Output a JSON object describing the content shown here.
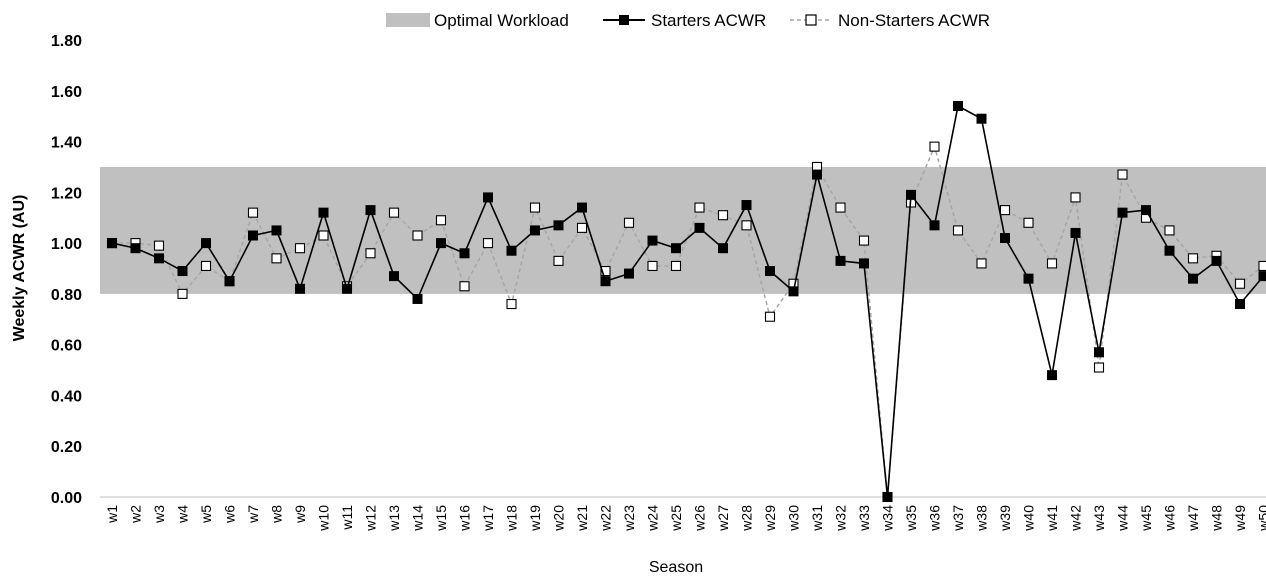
{
  "chart_data": {
    "type": "line",
    "title": "",
    "xlabel": "Season",
    "ylabel": "Weekly ACWR (AU)",
    "ylim": [
      0,
      1.8
    ],
    "y_ticks": [
      "0.00",
      "0.20",
      "0.40",
      "0.60",
      "0.80",
      "1.00",
      "1.20",
      "1.40",
      "1.60",
      "1.80"
    ],
    "y_tick_values": [
      0,
      0.2,
      0.4,
      0.6,
      0.8,
      1.0,
      1.2,
      1.4,
      1.6,
      1.8
    ],
    "grid": false,
    "legend_position": "top",
    "categories": [
      "w1",
      "w2",
      "w3",
      "w4",
      "w5",
      "w6",
      "w7",
      "w8",
      "w9",
      "w10",
      "w11",
      "w12",
      "w13",
      "w14",
      "w15",
      "w16",
      "w17",
      "w18",
      "w19",
      "w20",
      "w21",
      "w22",
      "w23",
      "w24",
      "w25",
      "w26",
      "w27",
      "w28",
      "w29",
      "w30",
      "w31",
      "w32",
      "w33",
      "w34",
      "w35",
      "w36",
      "w37",
      "w38",
      "w39",
      "w40",
      "w41",
      "w42",
      "w43",
      "w44",
      "w45",
      "w46",
      "w47",
      "w48",
      "w49",
      "w50"
    ],
    "band": {
      "name": "Optimal Workload",
      "range": [
        0.8,
        1.3
      ],
      "color": "#c0c0c0"
    },
    "series": [
      {
        "name": "Starters ACWR",
        "color": "#000000",
        "values": [
          1.0,
          0.98,
          0.94,
          0.89,
          1.0,
          0.85,
          1.03,
          1.05,
          0.82,
          1.12,
          0.82,
          1.13,
          0.87,
          0.78,
          1.0,
          0.96,
          1.18,
          0.97,
          1.05,
          1.07,
          1.14,
          0.85,
          0.88,
          1.01,
          0.98,
          1.06,
          0.98,
          1.15,
          0.89,
          0.81,
          1.27,
          0.93,
          0.92,
          0.0,
          1.19,
          1.07,
          1.54,
          1.49,
          1.02,
          0.86,
          0.48,
          1.04,
          0.57,
          1.12,
          1.13,
          0.97,
          0.86,
          0.93,
          0.76,
          0.87
        ]
      },
      {
        "name": "Non-Starters ACWR",
        "color": "#a6a6a6",
        "values": [
          1.0,
          1.0,
          0.99,
          0.8,
          0.91,
          0.85,
          1.12,
          0.94,
          0.98,
          1.03,
          0.83,
          0.96,
          1.12,
          1.03,
          1.09,
          0.83,
          1.0,
          0.76,
          1.14,
          0.93,
          1.06,
          0.89,
          1.08,
          0.91,
          0.91,
          1.14,
          1.11,
          1.07,
          0.71,
          0.84,
          1.3,
          1.14,
          1.01,
          0.0,
          1.16,
          1.38,
          1.05,
          0.92,
          1.13,
          1.08,
          0.92,
          1.18,
          0.51,
          1.27,
          1.1,
          1.05,
          0.94,
          0.95,
          0.84,
          0.91
        ]
      }
    ]
  }
}
